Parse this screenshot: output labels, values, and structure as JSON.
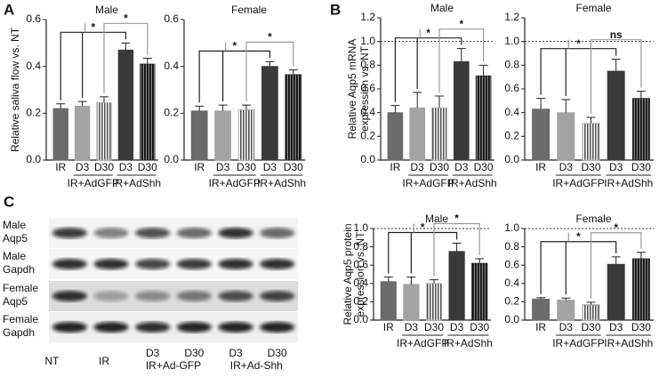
{
  "panels": [
    "A",
    "B",
    "C"
  ],
  "chart_data": [
    {
      "type": "bar",
      "title": "Male",
      "ylabel": [
        "Relative saliva flow vs. NT"
      ],
      "categories": [
        "IR",
        "D3",
        "D30",
        "D3",
        "D30"
      ],
      "groups": [
        "IR+AdGFP",
        "IR+AdShh"
      ],
      "values": [
        0.22,
        0.23,
        0.245,
        0.47,
        0.41
      ],
      "errors": [
        0.02,
        0.02,
        0.025,
        0.03,
        0.025
      ],
      "colors": [
        "#6b6b6b",
        "#a3a3a3",
        "#b5b5b5",
        "#3a3a3a",
        "#2a2a2a"
      ],
      "hatched": [
        false,
        false,
        true,
        false,
        true
      ],
      "ylim": [
        0,
        0.6
      ],
      "yticks": [
        {
          "value": 0,
          "label": "0.0"
        },
        0.2,
        0.4,
        0.6
      ],
      "annotations": [
        "*",
        "*"
      ]
    },
    {
      "type": "bar",
      "title": "Female",
      "categories": [
        "IR",
        "D3",
        "D30",
        "D3",
        "D30"
      ],
      "groups": [
        "IR+AdGFP",
        "IR+AdShh"
      ],
      "values": [
        0.21,
        0.21,
        0.215,
        0.4,
        0.365
      ],
      "errors": [
        0.02,
        0.025,
        0.02,
        0.02,
        0.02
      ],
      "colors": [
        "#6b6b6b",
        "#a3a3a3",
        "#b5b5b5",
        "#3a3a3a",
        "#2a2a2a"
      ],
      "hatched": [
        false,
        false,
        true,
        false,
        true
      ],
      "ylim": [
        0,
        0.6
      ],
      "yticks": [
        {
          "value": 0,
          "label": "0.0"
        },
        0.2,
        0.4,
        0.6
      ],
      "annotations": [
        "*",
        "*"
      ]
    },
    {
      "type": "bar",
      "title": "Male",
      "ylabel": [
        "Relative Aqp5 mRNA",
        "expression vs. NT"
      ],
      "categories": [
        "IR",
        "D3",
        "D30",
        "D3",
        "D30"
      ],
      "groups": [
        "IR+AdGFP",
        "IR+AdShh"
      ],
      "values": [
        0.4,
        0.44,
        0.44,
        0.83,
        0.71
      ],
      "errors": [
        0.06,
        0.13,
        0.1,
        0.11,
        0.09
      ],
      "colors": [
        "#6b6b6b",
        "#a3a3a3",
        "#b5b5b5",
        "#3a3a3a",
        "#2a2a2a"
      ],
      "hatched": [
        false,
        false,
        true,
        false,
        true
      ],
      "ylim": [
        0,
        1.2
      ],
      "yticks": [
        {
          "value": 0,
          "label": "0.0"
        },
        0.2,
        0.4,
        0.6,
        0.8,
        {
          "value": 1,
          "label": "1.0"
        },
        1.2
      ],
      "reference_line": 1,
      "annotations": [
        "*",
        "*"
      ]
    },
    {
      "type": "bar",
      "title": "Female",
      "categories": [
        "IR",
        "D3",
        "D30",
        "D3",
        "D30"
      ],
      "groups": [
        "IR+AdGFP",
        "IR+AdShh"
      ],
      "values": [
        0.43,
        0.4,
        0.31,
        0.75,
        0.52
      ],
      "errors": [
        0.09,
        0.11,
        0.05,
        0.1,
        0.06
      ],
      "colors": [
        "#6b6b6b",
        "#a3a3a3",
        "#b5b5b5",
        "#3a3a3a",
        "#2a2a2a"
      ],
      "hatched": [
        false,
        false,
        true,
        false,
        true
      ],
      "ylim": [
        0,
        1.2
      ],
      "yticks": [
        {
          "value": 0,
          "label": "0.0"
        },
        0.2,
        0.4,
        0.6,
        0.8,
        {
          "value": 1,
          "label": "1.0"
        },
        1.2
      ],
      "reference_line": 1,
      "annotations": [
        "*",
        "ns"
      ]
    },
    {
      "type": "bar",
      "title": "Male",
      "ylabel": [
        "Relative Aqp5 protein",
        "expression vs. NT"
      ],
      "categories": [
        "IR",
        "D3",
        "D30",
        "D3",
        "D30"
      ],
      "groups": [
        "IR+AdGFP",
        "IR+AdShh"
      ],
      "values": [
        0.42,
        0.39,
        0.4,
        0.75,
        0.62
      ],
      "errors": [
        0.05,
        0.08,
        0.04,
        0.09,
        0.05
      ],
      "colors": [
        "#6b6b6b",
        "#a3a3a3",
        "#b5b5b5",
        "#3a3a3a",
        "#2a2a2a"
      ],
      "hatched": [
        false,
        false,
        true,
        false,
        true
      ],
      "ylim": [
        0,
        1
      ],
      "yticks": [
        {
          "value": 0,
          "label": "0.0"
        },
        0.2,
        0.4,
        0.6,
        0.8,
        {
          "value": 1,
          "label": "1.0"
        }
      ],
      "reference_line": 1,
      "annotations": [
        "*",
        "*"
      ]
    },
    {
      "type": "bar",
      "title": "Female",
      "categories": [
        "IR",
        "D3",
        "D30",
        "D3",
        "D30"
      ],
      "groups": [
        "IR+AdGFP",
        "IR+AdShh"
      ],
      "values": [
        0.23,
        0.22,
        0.17,
        0.61,
        0.67
      ],
      "errors": [
        0.015,
        0.02,
        0.025,
        0.08,
        0.07
      ],
      "colors": [
        "#6b6b6b",
        "#a3a3a3",
        "#b5b5b5",
        "#3a3a3a",
        "#2a2a2a"
      ],
      "hatched": [
        false,
        false,
        true,
        false,
        true
      ],
      "ylim": [
        0,
        1
      ],
      "yticks": [
        {
          "value": 0,
          "label": "0.0"
        },
        0.2,
        0.4,
        0.6,
        0.8,
        {
          "value": 1,
          "label": "1.0"
        }
      ],
      "reference_line": 1,
      "annotations": [
        "*",
        "*"
      ]
    }
  ],
  "blot": {
    "row_labels": [
      [
        "Male",
        "Aqp5"
      ],
      [
        "Male",
        "Gapdh"
      ],
      [
        "Female",
        "Aqp5"
      ],
      [
        "Female",
        "Gapdh"
      ]
    ],
    "lanes": [
      "NT",
      "IR",
      "D3",
      "D30",
      "D3",
      "D30"
    ],
    "groups": [
      "IR+Ad-GFP",
      "IR+Ad-Shh"
    ]
  }
}
